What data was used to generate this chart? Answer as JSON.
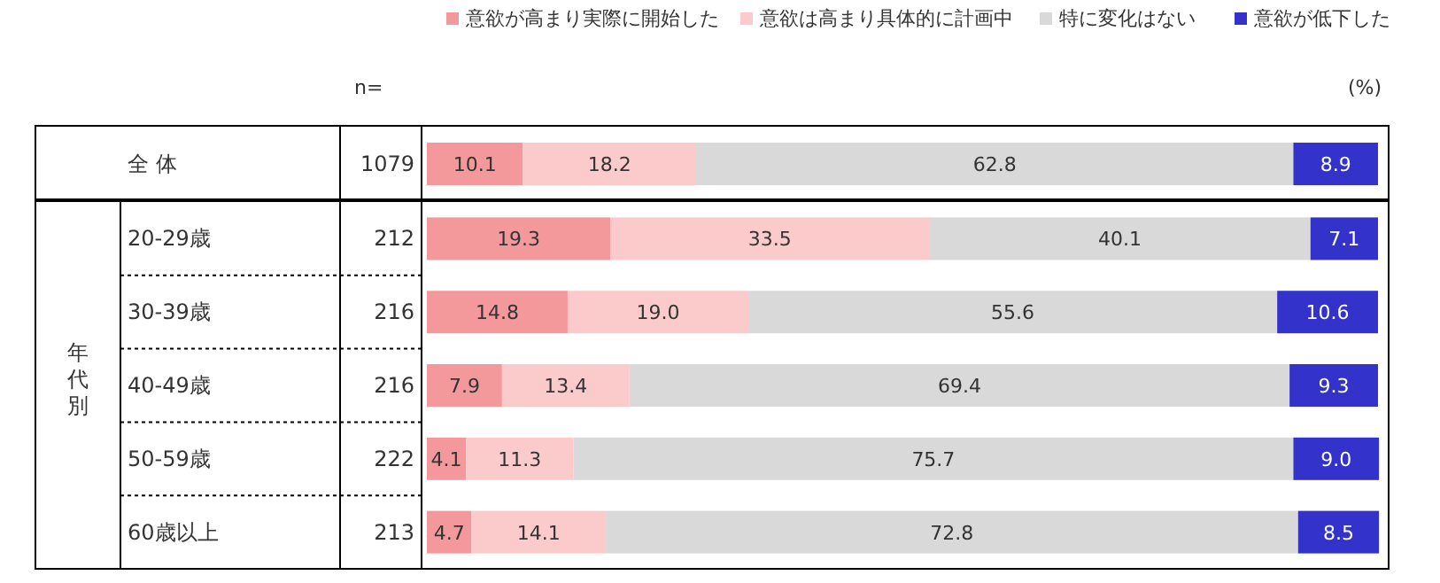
{
  "chart_data": {
    "type": "bar",
    "orientation": "horizontal",
    "stacked": true,
    "categories": [
      "全 体",
      "20-29歳",
      "30-39歳",
      "40-49歳",
      "50-59歳",
      "60歳以上"
    ],
    "series": [
      {
        "name": "意欲が高まり実際に開始した",
        "color": "#f4999b",
        "values": [
          10.1,
          19.3,
          14.8,
          7.9,
          4.1,
          4.7
        ],
        "value_labels": [
          "10.1",
          "19.3",
          "14.8",
          "7.9",
          "4.1",
          "4.7"
        ]
      },
      {
        "name": "意欲は高まり具体的に計画中",
        "color": "#fbcacb",
        "values": [
          18.2,
          33.5,
          19.0,
          13.4,
          11.3,
          14.1
        ],
        "value_labels": [
          "18.2",
          "33.5",
          "19.0",
          "13.4",
          "11.3",
          "14.1"
        ]
      },
      {
        "name": "特に変化はない",
        "color": "#d9d9d9",
        "values": [
          62.8,
          40.1,
          55.6,
          69.4,
          75.7,
          72.8
        ],
        "value_labels": [
          "62.8",
          "40.1",
          "55.6",
          "69.4",
          "75.7",
          "72.8"
        ]
      },
      {
        "name": "意欲が低下した",
        "color": "#3333cc",
        "values": [
          8.9,
          7.1,
          10.6,
          9.3,
          9.0,
          8.5
        ],
        "value_labels": [
          "8.9",
          "7.1",
          "10.6",
          "9.3",
          "9.0",
          "8.5"
        ]
      }
    ],
    "xlim": [
      0,
      100
    ],
    "legend": "top",
    "annotations": [
      "n=",
      "(%)",
      "年代別",
      "1079",
      "212",
      "216",
      "216",
      "222",
      "213"
    ]
  }
}
